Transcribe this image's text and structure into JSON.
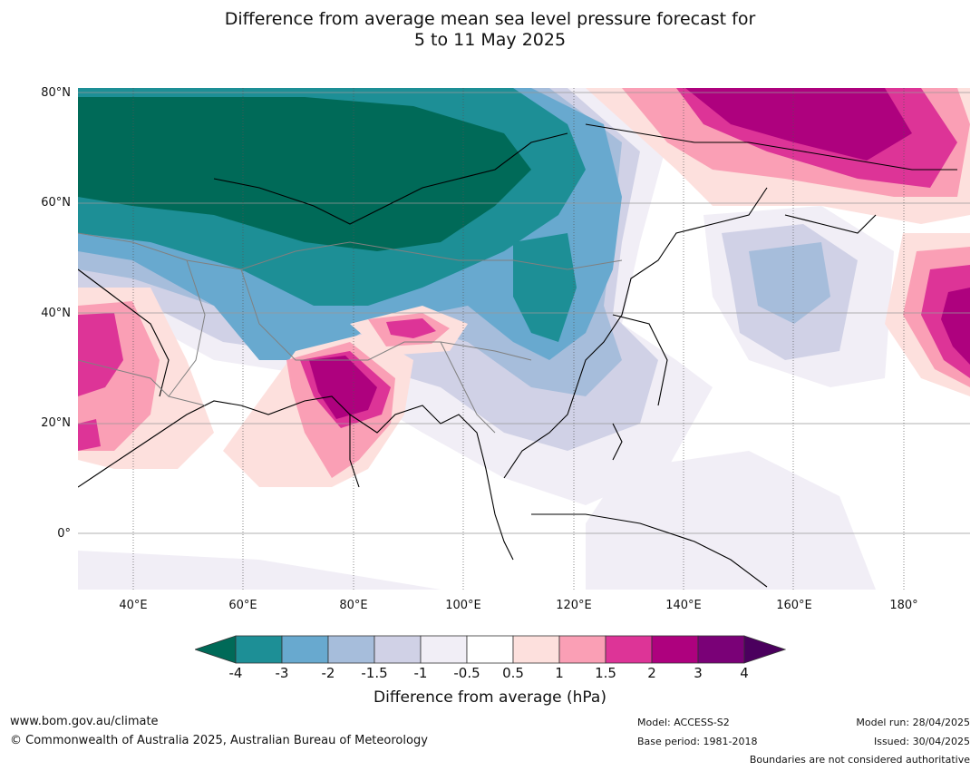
{
  "title_line1": "Difference from average mean sea level pressure forecast for",
  "title_line2": "5 to 11 May 2025",
  "lat_labels": [
    "80°N",
    "60°N",
    "40°N",
    "20°N",
    "0°"
  ],
  "lon_labels": [
    "40°E",
    "60°E",
    "80°E",
    "100°E",
    "120°E",
    "140°E",
    "160°E",
    "180°"
  ],
  "colorbar": {
    "ticks": [
      "-4",
      "-3",
      "-2",
      "-1.5",
      "-1",
      "-0.5",
      "0.5",
      "1",
      "1.5",
      "2",
      "3",
      "4"
    ],
    "low_extend_color": "#006a58",
    "high_extend_color": "#4b005e",
    "colors": [
      "#1d8f96",
      "#68a9cf",
      "#a6bddb",
      "#d0d1e6",
      "#f1eef6",
      "#ffffff",
      "#fde0dd",
      "#fa9fb5",
      "#dd3497",
      "#ae017e",
      "#7a0177"
    ],
    "label": "Difference from average (hPa)"
  },
  "footer": {
    "website": "www.bom.gov.au/climate",
    "copyright": "© Commonwealth of Australia 2025, Australian Bureau of Meteorology",
    "model": "Model: ACCESS-S2",
    "base_period": "Base period: 1981-2018",
    "model_run": "Model run: 28/04/2025",
    "issued": "Issued: 30/04/2025",
    "disclaimer": "Boundaries are not considered authoritative"
  }
}
